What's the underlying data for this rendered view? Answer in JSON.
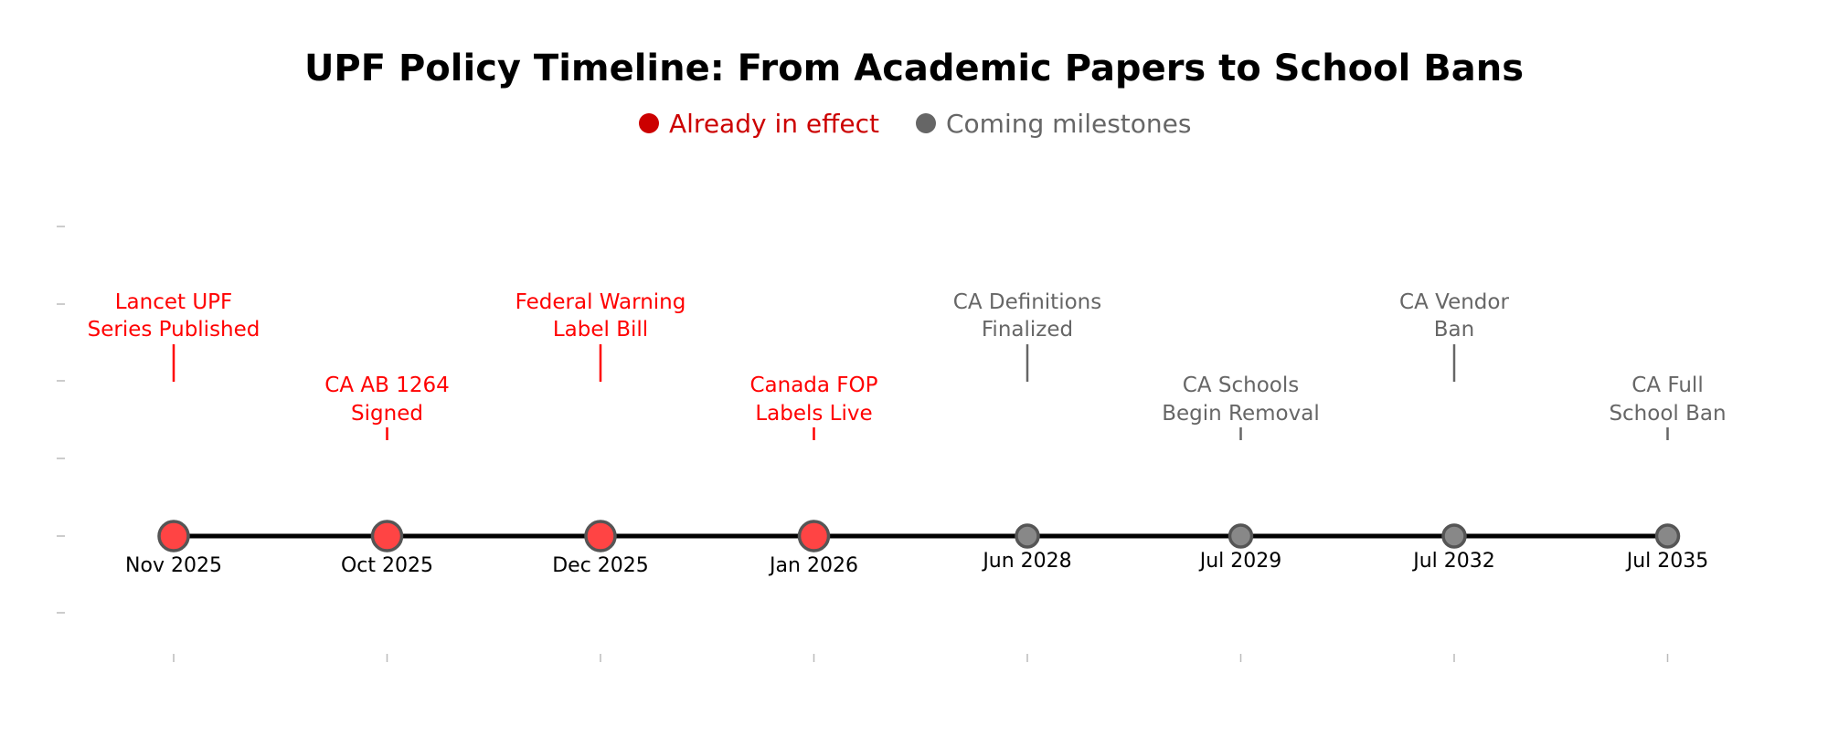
{
  "chart_data": {
    "type": "timeline",
    "title": "UPF Policy Timeline: From Academic Papers to School Bans",
    "legend": [
      {
        "label": "Already in effect",
        "color": "#cc0000"
      },
      {
        "label": "Coming milestones",
        "color": "#666666"
      }
    ],
    "grid": false,
    "events": [
      {
        "date": "Nov 2025",
        "label": [
          "Lancet UPF",
          "Series Published"
        ],
        "status": "effect",
        "tier": "high"
      },
      {
        "date": "Oct 2025",
        "label": [
          "CA AB 1264",
          "Signed"
        ],
        "status": "effect",
        "tier": "low"
      },
      {
        "date": "Dec 2025",
        "label": [
          "Federal Warning",
          "Label Bill"
        ],
        "status": "effect",
        "tier": "high"
      },
      {
        "date": "Jan 2026",
        "label": [
          "Canada FOP",
          "Labels Live"
        ],
        "status": "effect",
        "tier": "low"
      },
      {
        "date": "Jun 2028",
        "label": [
          "CA Definitions",
          "Finalized"
        ],
        "status": "coming",
        "tier": "high"
      },
      {
        "date": "Jul 2029",
        "label": [
          "CA Schools",
          "Begin Removal"
        ],
        "status": "coming",
        "tier": "low"
      },
      {
        "date": "Jul 2032",
        "label": [
          "CA Vendor",
          "Ban"
        ],
        "status": "coming",
        "tier": "high"
      },
      {
        "date": "Jul 2035",
        "label": [
          "CA Full",
          "School Ban"
        ],
        "status": "coming",
        "tier": "low"
      }
    ],
    "colors": {
      "effect_marker": "#ff4444",
      "effect_text": "#ff0000",
      "coming_marker": "#888888",
      "coming_text": "#666666",
      "marker_edge": "#555555",
      "timeline": "#000000"
    }
  }
}
